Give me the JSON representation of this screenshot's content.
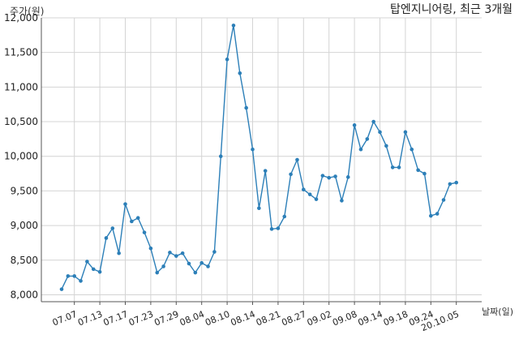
{
  "chart_data": {
    "type": "line",
    "title": "탑엔지니어링, 최근 3개월",
    "ylabel": "주가(원)",
    "xlabel": "날짜(일)",
    "ylim": [
      7900,
      12000
    ],
    "yticks": [
      8000,
      8500,
      9000,
      9500,
      10000,
      10500,
      11000,
      11500,
      12000
    ],
    "ytick_labels": [
      "8,000",
      "8,500",
      "9,000",
      "9,500",
      "10,000",
      "10,500",
      "11,000",
      "11,500",
      "12,000"
    ],
    "xtick_labels": [
      "07.07",
      "07.13",
      "07.17",
      "07.23",
      "07.29",
      "08.04",
      "08.10",
      "08.14",
      "08.21",
      "08.27",
      "09.02",
      "09.08",
      "09.14",
      "09.18",
      "09.24",
      "20.10.05"
    ],
    "xtick_index": [
      2,
      6,
      10,
      14,
      18,
      22,
      26,
      30,
      34,
      38,
      42,
      46,
      50,
      54,
      58,
      62
    ],
    "grid": true,
    "color": "#2c7fb8",
    "values": [
      8080,
      8270,
      8270,
      8200,
      8480,
      8370,
      8330,
      8820,
      8960,
      8600,
      9310,
      9060,
      9110,
      8900,
      8670,
      8320,
      8410,
      8610,
      8560,
      8600,
      8450,
      8320,
      8460,
      8410,
      8620,
      10000,
      11400,
      11890,
      11200,
      10700,
      10100,
      9250,
      9790,
      8950,
      8960,
      9130,
      9740,
      9950,
      9520,
      9450,
      9380,
      9720,
      9690,
      9710,
      9360,
      9700,
      10450,
      10100,
      10250,
      10500,
      10350,
      10150,
      9840,
      9840,
      10350,
      10100,
      9800,
      9750,
      9140,
      9170,
      9370,
      9600,
      9620
    ]
  }
}
